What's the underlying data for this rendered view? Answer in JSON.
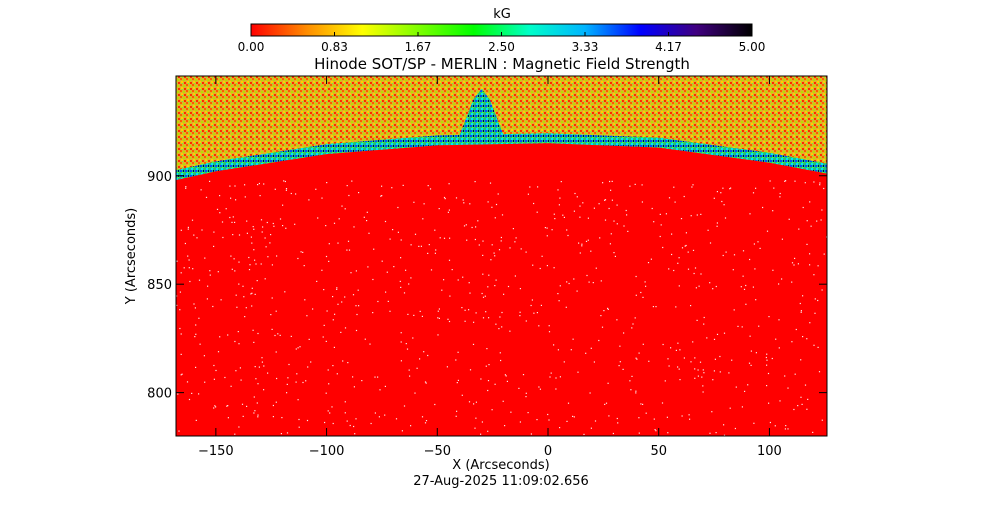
{
  "chart_data": {
    "type": "heatmap",
    "title": "Hinode SOT/SP - MERLIN : Magnetic Field Strength",
    "xlabel": "X (Arcseconds)",
    "ylabel": "Y (Arcseconds)",
    "timestamp": "27-Aug-2025 11:09:02.656",
    "xlim": [
      -168,
      126
    ],
    "ylim": [
      780,
      946
    ],
    "x_ticks": [
      -150,
      -100,
      -50,
      0,
      50,
      100
    ],
    "y_ticks": [
      800,
      850,
      900
    ],
    "colorbar": {
      "unit": "kG",
      "range": [
        0.0,
        5.0
      ],
      "ticks": [
        "0.00",
        "0.83",
        "1.67",
        "2.50",
        "3.33",
        "4.17",
        "5.00"
      ],
      "colors": [
        "#ff0000",
        "#ff8c00",
        "#ffff00",
        "#7fff00",
        "#00ff00",
        "#00ffc8",
        "#00b4ff",
        "#0000ff",
        "#400080",
        "#000000"
      ]
    },
    "limb": {
      "description_points_x": [
        -168,
        -150,
        -100,
        -50,
        0,
        50,
        100,
        126
      ],
      "limb_y": [
        898,
        902,
        910,
        914,
        915,
        913,
        906,
        901
      ]
    },
    "disk_value_kG": 0.0,
    "off_limb_value_range_kG": [
      0.5,
      1.5
    ],
    "spike": {
      "x": -30,
      "y_top": 940
    }
  }
}
